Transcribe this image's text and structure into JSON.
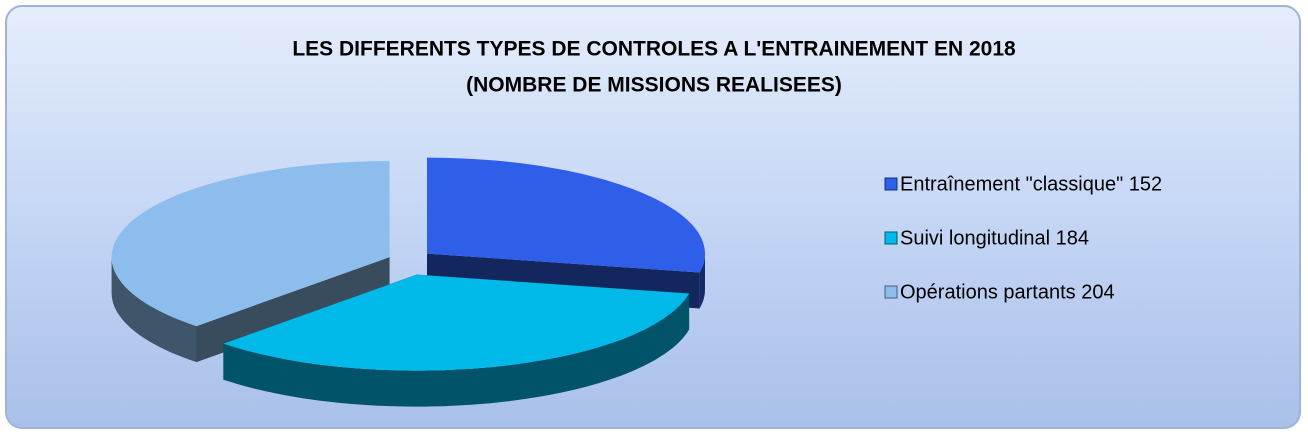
{
  "chart_data": {
    "type": "pie3d",
    "title": "LES DIFFERENTS TYPES DE CONTROLES A L'ENTRAINEMENT EN 2018",
    "subtitle": "(NOMBRE DE MISSIONS REALISEES)",
    "categories": [
      "Entraînement  \"classique\" 152",
      "Suivi longitudinal 184",
      "Opérations partants 204"
    ],
    "values": [
      152,
      184,
      204
    ],
    "colors": [
      "#2f5fe8",
      "#00b9e8",
      "#8dbdec"
    ],
    "legend": "right"
  }
}
